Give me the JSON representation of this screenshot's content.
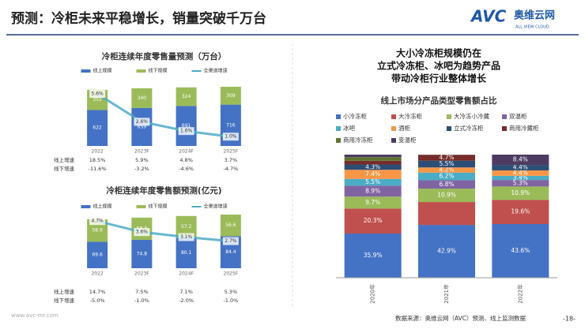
{
  "title": "预测：冷柜未来平稳增长，销量突破千万台",
  "logo": {
    "brand": "AVC",
    "name": "奥维云网",
    "tagline": "ALL VIEW CLOUD"
  },
  "source": "数据来源：奥维云网（AVC）预测、线上监测数据",
  "page_number": "-18-",
  "website": "www.avc-mr.com",
  "chart_data": [
    {
      "type": "combo",
      "title": "冷柜连续年度零售量预测（万台）",
      "categories": [
        "2022",
        "2023F",
        "2024F",
        "2025F"
      ],
      "series": [
        {
          "name": "线上规模",
          "color": "#4472c4",
          "values": [
            622,
            659,
            691,
            716
          ]
        },
        {
          "name": "线下规模",
          "color": "#9bbb59",
          "values": [
            351,
            340,
            324,
            309
          ]
        },
        {
          "name": "全渠道增速",
          "color": "#4bacc6",
          "axis": "y2",
          "values": [
            5.6,
            2.6,
            1.6,
            1.0
          ],
          "value_labels": [
            "5.6%",
            "2.6%",
            "1.6%",
            "1.0%"
          ]
        }
      ],
      "table": {
        "rows": [
          {
            "label": "线上增速",
            "values": [
              "18.5%",
              "5.9%",
              "4.8%",
              "3.7%"
            ]
          },
          {
            "label": "线下增速",
            "values": [
              "-11.6%",
              "-3.2%",
              "-4.6%",
              "-4.7%"
            ]
          }
        ]
      }
    },
    {
      "type": "combo",
      "title": "冷柜连续年度零售额预测(亿元)",
      "categories": [
        "2022",
        "2023F",
        "2024F",
        "2025F"
      ],
      "series": [
        {
          "name": "线上规模",
          "color": "#4472c4",
          "values": [
            69.6,
            74.8,
            80.1,
            84.4
          ]
        },
        {
          "name": "线下规模",
          "color": "#9bbb59",
          "values": [
            58.9,
            58.3,
            57.2,
            56.6
          ]
        },
        {
          "name": "全渠道增速",
          "color": "#4bacc6",
          "axis": "y2",
          "values": [
            4.7,
            3.6,
            3.1,
            2.7
          ],
          "value_labels": [
            "4.7%",
            "3.6%",
            "3.1%",
            "2.7%"
          ]
        }
      ],
      "table": {
        "rows": [
          {
            "label": "线上增速",
            "values": [
              "14.7%",
              "7.5%",
              "7.1%",
              "5.3%"
            ]
          },
          {
            "label": "线下增速",
            "values": [
              "-5.0%",
              "-1.0%",
              "-2.0%",
              "-1.0%"
            ]
          }
        ]
      }
    },
    {
      "type": "stacked-bar",
      "title": "线上市场分产品类型零售额占比",
      "annotation": [
        "大小冷冻柜规模仍在",
        "立式冷冻柜、冰吧为趋势产品",
        "带动冷柜行业整体增长"
      ],
      "categories": [
        "2020年",
        "2021年",
        "2022年"
      ],
      "series": [
        {
          "name": "小冷冻柜",
          "color": "#4472c4",
          "values": [
            35.9,
            42.9,
            43.6
          ],
          "value_labels": [
            "35.9%",
            "42.9%",
            "43.6%"
          ]
        },
        {
          "name": "大冷冻柜",
          "color": "#c0504d",
          "values": [
            20.3,
            18.6,
            19.6
          ],
          "value_labels": [
            "20.3%",
            null,
            "19.6%"
          ]
        },
        {
          "name": "大冷冻小冷藏",
          "color": "#9bbb59",
          "values": [
            9.7,
            10.9,
            10.9
          ],
          "value_labels": [
            "9.7%",
            "10.9%",
            "10.9%"
          ]
        },
        {
          "name": "双温柜",
          "color": "#8064a2",
          "values": [
            8.9,
            6.8,
            5.3
          ],
          "value_labels": [
            "8.9%",
            "6.8%",
            "5.3%"
          ]
        },
        {
          "name": "冰吧",
          "color": "#4bacc6",
          "values": [
            5.5,
            6.2,
            3.4
          ],
          "value_labels": [
            "5.5%",
            "6.2%",
            "3.4%"
          ]
        },
        {
          "name": "酒柜",
          "color": "#f79646",
          "values": [
            7.4,
            4.2,
            4.4
          ],
          "value_labels": [
            "7.4%",
            "4.2%",
            "4.4%"
          ]
        },
        {
          "name": "立式冷冻柜",
          "color": "#2c4d75",
          "values": [
            4.3,
            5.5,
            4.4
          ],
          "value_labels": [
            "4.3%",
            "5.5%",
            "4.4%"
          ]
        },
        {
          "name": "商用冷藏柜",
          "color": "#772c2a",
          "values": [
            3.0,
            4.7,
            0
          ],
          "value_labels": [
            null,
            "4.7%",
            null
          ]
        },
        {
          "name": "商用冷冻柜",
          "color": "#5f7530",
          "values": [
            3.0,
            0.1,
            0
          ],
          "value_labels": [
            null,
            null,
            null
          ]
        },
        {
          "name": "变温柜",
          "color": "#4d3b62",
          "values": [
            2.0,
            0.1,
            8.4
          ],
          "value_labels": [
            null,
            null,
            "8.4%"
          ]
        }
      ]
    }
  ]
}
